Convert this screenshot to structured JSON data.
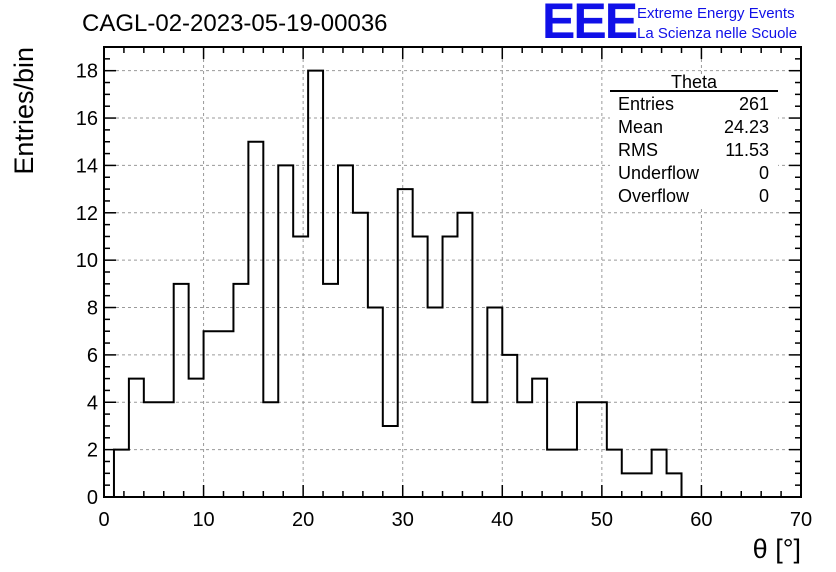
{
  "title": "CAGL-02-2023-05-19-00036",
  "logo": {
    "mark": "EEE",
    "line1": "Extreme Energy Events",
    "line2": "La Scienza nelle Scuole",
    "color": "#1010e8"
  },
  "chart_data": {
    "type": "bar",
    "title": "CAGL-02-2023-05-19-00036",
    "xlabel": "θ [°]",
    "ylabel": "Entries/bin",
    "xlim": [
      0,
      70
    ],
    "ylim": [
      0,
      19
    ],
    "grid": true,
    "x_ticks": [
      0,
      10,
      20,
      30,
      40,
      50,
      60,
      70
    ],
    "y_ticks": [
      0,
      2,
      4,
      6,
      8,
      10,
      12,
      14,
      16,
      18
    ],
    "bin_width": 1.5,
    "bin_start": 1.0,
    "values": [
      2,
      5,
      4,
      4,
      9,
      5,
      7,
      7,
      9,
      15,
      4,
      14,
      11,
      18,
      9,
      14,
      12,
      8,
      3,
      13,
      11,
      8,
      11,
      12,
      4,
      8,
      6,
      4,
      5,
      2,
      2,
      4,
      4,
      2,
      1,
      1,
      2,
      1
    ],
    "stats_box": {
      "name": "Theta",
      "rows": [
        {
          "label": "Entries",
          "value": "261"
        },
        {
          "label": "Mean",
          "value": "24.23"
        },
        {
          "label": "RMS",
          "value": "11.53"
        },
        {
          "label": "Underflow",
          "value": "0"
        },
        {
          "label": "Overflow",
          "value": "0"
        }
      ]
    }
  }
}
